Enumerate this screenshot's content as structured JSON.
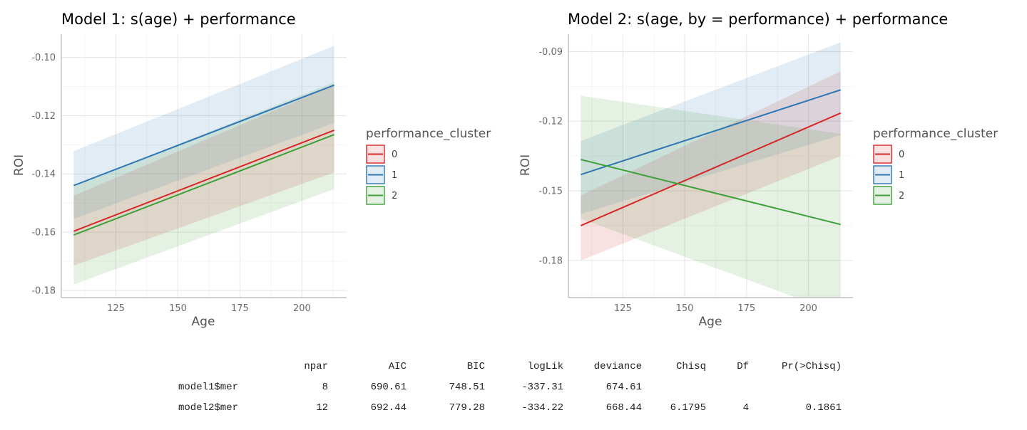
{
  "colors": {
    "0": "#d62728",
    "1": "#2f76b4",
    "2": "#3e9e3a"
  },
  "chart_data": [
    {
      "type": "line",
      "title": "Model 1: s(age) + performance",
      "xlabel": "Age",
      "ylabel": "ROI",
      "xlim": [
        103,
        218
      ],
      "ylim": [
        -0.1825,
        -0.092
      ],
      "xticks": [
        125,
        150,
        175,
        200
      ],
      "xtick_labels": [
        "125",
        "150",
        "175",
        "200"
      ],
      "yticks": [
        -0.18,
        -0.16,
        -0.14,
        -0.12,
        -0.1
      ],
      "ytick_labels": [
        "-0.18",
        "-0.16",
        "-0.14",
        "-0.12",
        "-0.10"
      ],
      "grid": true,
      "legend": {
        "title": "performance_cluster",
        "position": "right",
        "entries": [
          "0",
          "1",
          "2"
        ]
      },
      "series": [
        {
          "name": "0",
          "x": [
            108,
            213
          ],
          "y": [
            -0.1597,
            -0.125
          ],
          "lower": [
            -0.1715,
            -0.1395
          ],
          "upper": [
            -0.1475,
            -0.1095
          ]
        },
        {
          "name": "1",
          "x": [
            108,
            213
          ],
          "y": [
            -0.144,
            -0.1095
          ],
          "lower": [
            -0.1555,
            -0.1225
          ],
          "upper": [
            -0.1322,
            -0.096
          ]
        },
        {
          "name": "2",
          "x": [
            108,
            213
          ],
          "y": [
            -0.161,
            -0.1265
          ],
          "lower": [
            -0.178,
            -0.1452
          ],
          "upper": [
            -0.144,
            -0.1085
          ]
        }
      ]
    },
    {
      "type": "line",
      "title": "Model 2: s(age, by = performance) + performance",
      "xlabel": "Age",
      "ylabel": "ROI",
      "xlim": [
        103,
        218
      ],
      "ylim": [
        -0.196,
        -0.0825
      ],
      "xticks": [
        125,
        150,
        175,
        200
      ],
      "xtick_labels": [
        "125",
        "150",
        "175",
        "200"
      ],
      "yticks": [
        -0.18,
        -0.15,
        -0.12,
        -0.09
      ],
      "ytick_labels": [
        "-0.18",
        "-0.15",
        "-0.12",
        "-0.09"
      ],
      "grid": true,
      "legend": {
        "title": "performance_cluster",
        "position": "right",
        "entries": [
          "0",
          "1",
          "2"
        ]
      },
      "series": [
        {
          "name": "0",
          "x": [
            108,
            213
          ],
          "y": [
            -0.165,
            -0.1165
          ],
          "lower": [
            -0.18,
            -0.135
          ],
          "upper": [
            -0.152,
            -0.0985
          ]
        },
        {
          "name": "1",
          "x": [
            108,
            213
          ],
          "y": [
            -0.143,
            -0.1065
          ],
          "lower": [
            -0.16,
            -0.126
          ],
          "upper": [
            -0.1285,
            -0.086
          ]
        },
        {
          "name": "2",
          "x": [
            108,
            213
          ],
          "y": [
            -0.1365,
            -0.1645
          ],
          "lower": [
            -0.162,
            -0.203
          ],
          "upper": [
            -0.109,
            -0.1255
          ]
        }
      ]
    }
  ],
  "anova": {
    "headers": [
      "",
      "npar",
      "AIC",
      "BIC",
      "logLik",
      "deviance",
      "Chisq",
      "Df",
      "Pr(>Chisq)"
    ],
    "rows": [
      [
        "model1$mer",
        "8",
        "690.61",
        "748.51",
        "-337.31",
        "674.61",
        "",
        "",
        ""
      ],
      [
        "model2$mer",
        "12",
        "692.44",
        "779.28",
        "-334.22",
        "668.44",
        "6.1795",
        "4",
        "0.1861"
      ]
    ]
  }
}
